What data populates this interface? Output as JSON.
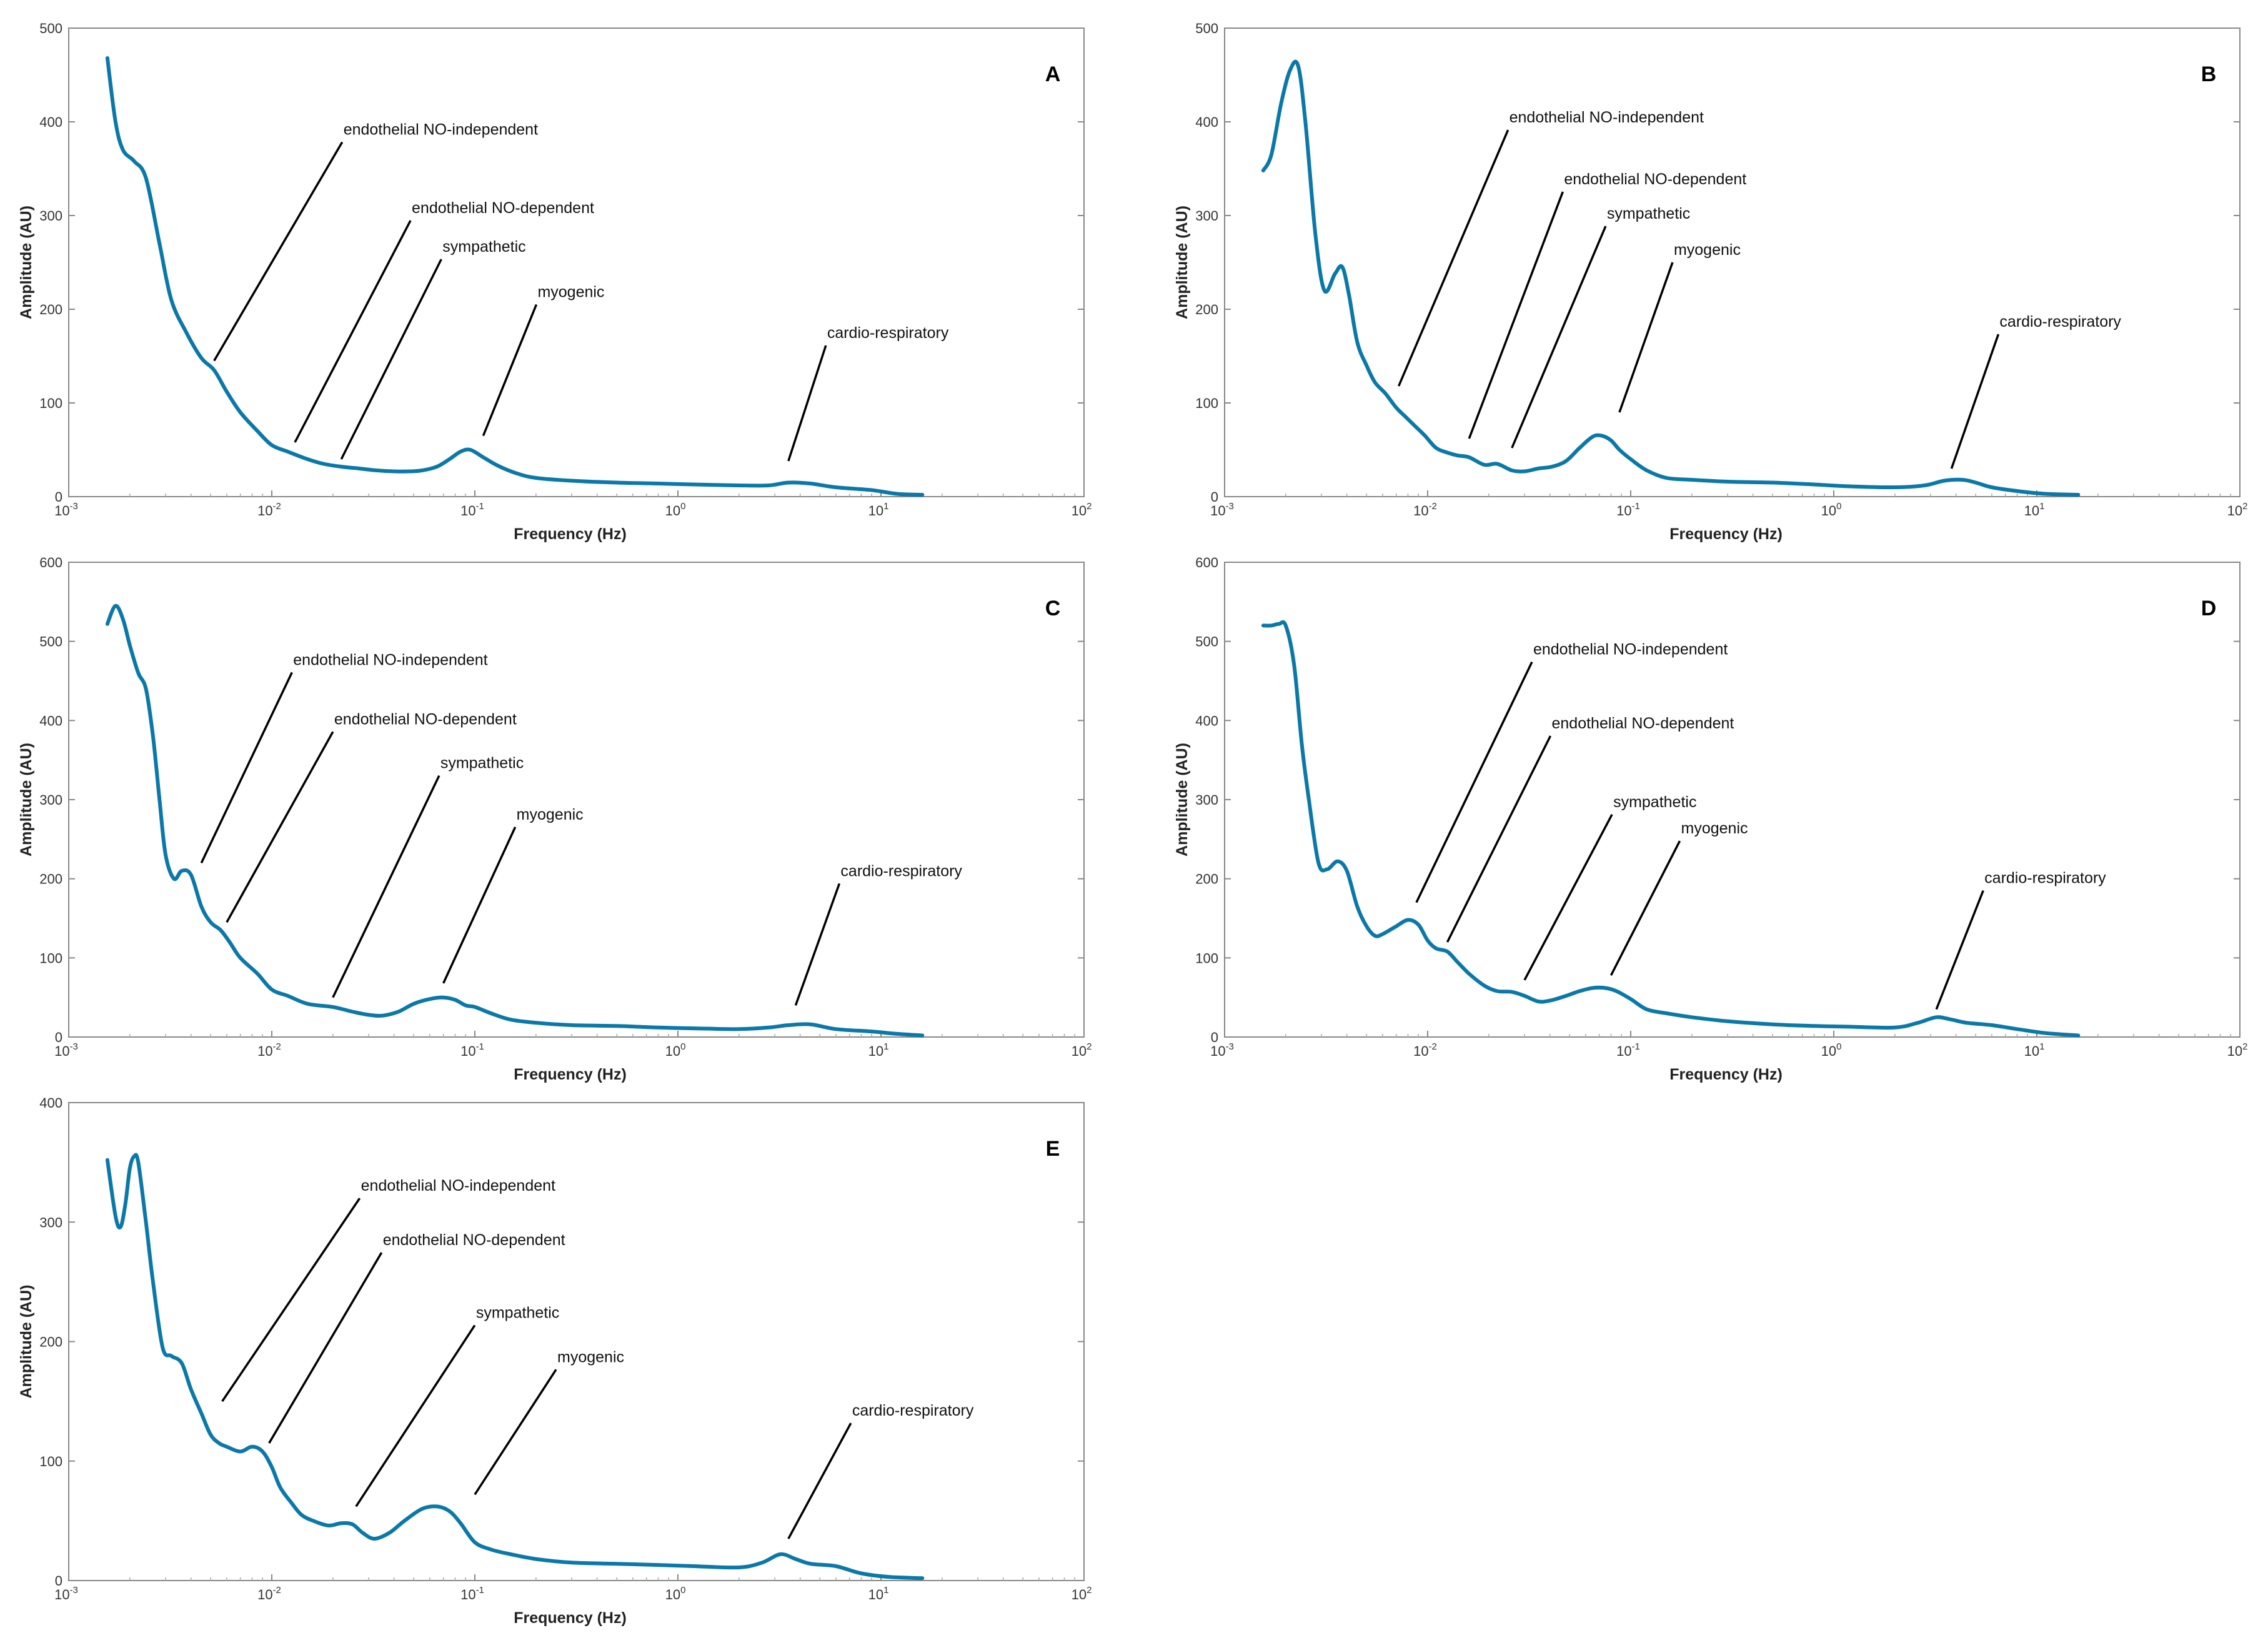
{
  "chart_data": [
    {
      "type": "line",
      "panel": "A",
      "xlabel": "Frequency (Hz)",
      "ylabel": "Amplitude (AU)",
      "xscale": "log",
      "xlim": [
        0.001,
        100
      ],
      "ylim": [
        0,
        500
      ],
      "x_ticks": [
        0.001,
        0.01,
        0.1,
        1,
        10,
        100
      ],
      "x_tick_labels": [
        {
          "base": "10",
          "exp": "-3"
        },
        {
          "base": "10",
          "exp": "-2"
        },
        {
          "base": "10",
          "exp": "-1"
        },
        {
          "base": "10",
          "exp": "0"
        },
        {
          "base": "10",
          "exp": "1"
        },
        {
          "base": "10",
          "exp": "2"
        }
      ],
      "y_ticks": [
        0,
        100,
        200,
        300,
        400,
        500
      ],
      "y_tick_labels": [
        "0",
        "100",
        "200",
        "300",
        "400",
        "500"
      ],
      "series": [
        {
          "name": "Amplitude",
          "x": [
            0.00155,
            0.0017,
            0.00185,
            0.0021,
            0.0024,
            0.0028,
            0.0032,
            0.0038,
            0.0045,
            0.0052,
            0.006,
            0.007,
            0.0085,
            0.01,
            0.012,
            0.015,
            0.018,
            0.022,
            0.027,
            0.033,
            0.04,
            0.048,
            0.055,
            0.065,
            0.075,
            0.085,
            0.095,
            0.11,
            0.13,
            0.16,
            0.2,
            0.3,
            0.5,
            0.8,
            1.2,
            2,
            2.8,
            3.5,
            4.5,
            6,
            9,
            12,
            16
          ],
          "y": [
            468,
            400,
            370,
            358,
            340,
            270,
            210,
            175,
            148,
            135,
            112,
            90,
            70,
            55,
            48,
            40,
            35,
            32,
            30,
            28,
            27,
            27,
            28,
            32,
            40,
            48,
            50,
            42,
            33,
            25,
            20,
            17,
            15,
            14,
            13,
            12,
            12,
            15,
            14,
            10,
            7,
            3,
            2
          ]
        }
      ],
      "annotations": [
        {
          "text": "endothelial NO-independent",
          "x": 0.0052,
          "y": 145
        },
        {
          "text": "endothelial NO-dependent",
          "x": 0.013,
          "y": 58
        },
        {
          "text": "sympathetic",
          "x": 0.022,
          "y": 40
        },
        {
          "text": "myogenic",
          "x": 0.11,
          "y": 65
        },
        {
          "text": "cardio-respiratory",
          "x": 3.5,
          "y": 38
        }
      ]
    },
    {
      "type": "line",
      "panel": "B",
      "xlabel": "Frequency (Hz)",
      "ylabel": "Amplitude (AU)",
      "xscale": "log",
      "xlim": [
        0.001,
        100
      ],
      "ylim": [
        0,
        500
      ],
      "x_ticks": [
        0.001,
        0.01,
        0.1,
        1,
        10,
        100
      ],
      "x_tick_labels": [
        {
          "base": "10",
          "exp": "-3"
        },
        {
          "base": "10",
          "exp": "-2"
        },
        {
          "base": "10",
          "exp": "-1"
        },
        {
          "base": "10",
          "exp": "0"
        },
        {
          "base": "10",
          "exp": "1"
        },
        {
          "base": "10",
          "exp": "2"
        }
      ],
      "y_ticks": [
        0,
        100,
        200,
        300,
        400,
        500
      ],
      "y_tick_labels": [
        "0",
        "100",
        "200",
        "300",
        "400",
        "500"
      ],
      "series": [
        {
          "name": "Amplitude",
          "x": [
            0.00155,
            0.0017,
            0.0019,
            0.0021,
            0.0023,
            0.0025,
            0.0028,
            0.0031,
            0.0035,
            0.0038,
            0.0041,
            0.0045,
            0.005,
            0.0055,
            0.0062,
            0.007,
            0.0078,
            0.0087,
            0.0097,
            0.011,
            0.0125,
            0.014,
            0.016,
            0.019,
            0.022,
            0.026,
            0.03,
            0.035,
            0.041,
            0.048,
            0.056,
            0.065,
            0.072,
            0.08,
            0.088,
            0.1,
            0.12,
            0.15,
            0.2,
            0.3,
            0.5,
            0.8,
            1.2,
            2,
            2.8,
            3.5,
            4.3,
            5,
            6,
            8,
            11,
            16
          ],
          "y": [
            348,
            365,
            420,
            455,
            460,
            400,
            280,
            220,
            238,
            245,
            215,
            165,
            140,
            122,
            110,
            95,
            85,
            75,
            65,
            52,
            47,
            44,
            42,
            34,
            35,
            28,
            27,
            30,
            32,
            38,
            52,
            64,
            65,
            60,
            50,
            40,
            28,
            20,
            18,
            16,
            15,
            13,
            11,
            10,
            12,
            17,
            18,
            15,
            10,
            6,
            3,
            2
          ]
        }
      ],
      "annotations": [
        {
          "text": "endothelial NO-independent",
          "x": 0.0072,
          "y": 118
        },
        {
          "text": "endothelial NO-dependent",
          "x": 0.016,
          "y": 62
        },
        {
          "text": "sympathetic",
          "x": 0.026,
          "y": 52
        },
        {
          "text": "myogenic",
          "x": 0.088,
          "y": 90
        },
        {
          "text": "cardio-respiratory",
          "x": 3.8,
          "y": 30
        }
      ]
    },
    {
      "type": "line",
      "panel": "C",
      "xlabel": "Frequency (Hz)",
      "ylabel": "Amplitude (AU)",
      "xscale": "log",
      "xlim": [
        0.001,
        100
      ],
      "ylim": [
        0,
        600
      ],
      "x_ticks": [
        0.001,
        0.01,
        0.1,
        1,
        10,
        100
      ],
      "x_tick_labels": [
        {
          "base": "10",
          "exp": "-3"
        },
        {
          "base": "10",
          "exp": "-2"
        },
        {
          "base": "10",
          "exp": "-1"
        },
        {
          "base": "10",
          "exp": "0"
        },
        {
          "base": "10",
          "exp": "1"
        },
        {
          "base": "10",
          "exp": "2"
        }
      ],
      "y_ticks": [
        0,
        100,
        200,
        300,
        400,
        500,
        600
      ],
      "y_tick_labels": [
        "0",
        "100",
        "200",
        "300",
        "400",
        "500",
        "600"
      ],
      "series": [
        {
          "name": "Amplitude",
          "x": [
            0.00155,
            0.0017,
            0.00185,
            0.002,
            0.0022,
            0.0024,
            0.0026,
            0.0028,
            0.003,
            0.0033,
            0.0036,
            0.004,
            0.0045,
            0.005,
            0.0056,
            0.0062,
            0.007,
            0.0085,
            0.01,
            0.012,
            0.015,
            0.02,
            0.025,
            0.03,
            0.035,
            0.042,
            0.05,
            0.06,
            0.07,
            0.08,
            0.09,
            0.1,
            0.12,
            0.15,
            0.2,
            0.3,
            0.5,
            0.8,
            1.2,
            2,
            2.8,
            3.5,
            4.5,
            6,
            9,
            12,
            16
          ],
          "y": [
            522,
            545,
            528,
            495,
            460,
            440,
            380,
            300,
            230,
            200,
            210,
            205,
            165,
            145,
            135,
            120,
            100,
            80,
            60,
            52,
            42,
            38,
            32,
            28,
            27,
            32,
            42,
            48,
            50,
            47,
            40,
            38,
            30,
            22,
            18,
            15,
            14,
            12,
            11,
            10,
            12,
            15,
            16,
            10,
            7,
            4,
            2
          ]
        }
      ],
      "annotations": [
        {
          "text": "endothelial NO-independent",
          "x": 0.0045,
          "y": 220
        },
        {
          "text": "endothelial NO-dependent",
          "x": 0.006,
          "y": 145
        },
        {
          "text": "sympathetic",
          "x": 0.02,
          "y": 50
        },
        {
          "text": "myogenic",
          "x": 0.07,
          "y": 68
        },
        {
          "text": "cardio-respiratory",
          "x": 3.8,
          "y": 40
        }
      ]
    },
    {
      "type": "line",
      "panel": "D",
      "xlabel": "Frequency (Hz)",
      "ylabel": "Amplitude (AU)",
      "xscale": "log",
      "xlim": [
        0.001,
        100
      ],
      "ylim": [
        0,
        600
      ],
      "x_ticks": [
        0.001,
        0.01,
        0.1,
        1,
        10,
        100
      ],
      "x_tick_labels": [
        {
          "base": "10",
          "exp": "-3"
        },
        {
          "base": "10",
          "exp": "-2"
        },
        {
          "base": "10",
          "exp": "-1"
        },
        {
          "base": "10",
          "exp": "0"
        },
        {
          "base": "10",
          "exp": "1"
        },
        {
          "base": "10",
          "exp": "2"
        }
      ],
      "y_ticks": [
        0,
        100,
        200,
        300,
        400,
        500,
        600
      ],
      "y_tick_labels": [
        "0",
        "100",
        "200",
        "300",
        "400",
        "500",
        "600"
      ],
      "series": [
        {
          "name": "Amplitude",
          "x": [
            0.00155,
            0.0017,
            0.00185,
            0.002,
            0.0022,
            0.0024,
            0.0026,
            0.0029,
            0.0032,
            0.0036,
            0.004,
            0.0045,
            0.005,
            0.0055,
            0.006,
            0.007,
            0.008,
            0.009,
            0.01,
            0.011,
            0.0125,
            0.014,
            0.016,
            0.019,
            0.022,
            0.026,
            0.03,
            0.035,
            0.04,
            0.048,
            0.056,
            0.065,
            0.075,
            0.085,
            0.1,
            0.12,
            0.15,
            0.2,
            0.3,
            0.5,
            0.8,
            1.2,
            2,
            2.6,
            3.2,
            3.8,
            4.5,
            6,
            8,
            11,
            16
          ],
          "y": [
            520,
            520,
            522,
            520,
            470,
            370,
            300,
            220,
            212,
            222,
            210,
            165,
            140,
            128,
            130,
            140,
            148,
            142,
            122,
            112,
            108,
            95,
            80,
            65,
            58,
            57,
            52,
            45,
            46,
            52,
            58,
            62,
            62,
            58,
            48,
            35,
            30,
            25,
            20,
            16,
            14,
            13,
            12,
            18,
            25,
            22,
            18,
            15,
            10,
            5,
            2
          ]
        }
      ],
      "annotations": [
        {
          "text": "endothelial NO-independent",
          "x": 0.0088,
          "y": 170
        },
        {
          "text": "endothelial NO-dependent",
          "x": 0.0125,
          "y": 120
        },
        {
          "text": "sympathetic",
          "x": 0.03,
          "y": 72
        },
        {
          "text": "myogenic",
          "x": 0.08,
          "y": 78
        },
        {
          "text": "cardio-respiratory",
          "x": 3.2,
          "y": 35
        }
      ]
    },
    {
      "type": "line",
      "panel": "E",
      "xlabel": "Frequency (Hz)",
      "ylabel": "Amplitude (AU)",
      "xscale": "log",
      "xlim": [
        0.001,
        100
      ],
      "ylim": [
        0,
        400
      ],
      "x_ticks": [
        0.001,
        0.01,
        0.1,
        1,
        10,
        100
      ],
      "x_tick_labels": [
        {
          "base": "10",
          "exp": "-3"
        },
        {
          "base": "10",
          "exp": "-2"
        },
        {
          "base": "10",
          "exp": "-1"
        },
        {
          "base": "10",
          "exp": "0"
        },
        {
          "base": "10",
          "exp": "1"
        },
        {
          "base": "10",
          "exp": "2"
        }
      ],
      "y_ticks": [
        0,
        100,
        200,
        300,
        400
      ],
      "y_tick_labels": [
        "0",
        "100",
        "200",
        "300",
        "400"
      ],
      "series": [
        {
          "name": "Amplitude",
          "x": [
            0.00155,
            0.0017,
            0.0018,
            0.0019,
            0.002,
            0.0021,
            0.0022,
            0.0024,
            0.0026,
            0.0029,
            0.0032,
            0.0036,
            0.004,
            0.0045,
            0.005,
            0.0055,
            0.006,
            0.007,
            0.008,
            0.009,
            0.01,
            0.011,
            0.0125,
            0.014,
            0.016,
            0.019,
            0.022,
            0.025,
            0.028,
            0.032,
            0.038,
            0.045,
            0.055,
            0.065,
            0.075,
            0.085,
            0.1,
            0.12,
            0.15,
            0.2,
            0.3,
            0.5,
            0.8,
            1.2,
            2,
            2.6,
            3.2,
            3.8,
            4.5,
            6,
            8,
            11,
            16
          ],
          "y": [
            352,
            305,
            296,
            315,
            345,
            355,
            350,
            300,
            250,
            195,
            188,
            182,
            160,
            140,
            122,
            115,
            112,
            108,
            112,
            108,
            95,
            78,
            65,
            55,
            50,
            46,
            48,
            47,
            40,
            35,
            40,
            50,
            60,
            62,
            58,
            48,
            32,
            26,
            22,
            18,
            15,
            14,
            13,
            12,
            11,
            15,
            22,
            18,
            14,
            12,
            6,
            3,
            2
          ]
        }
      ],
      "annotations": [
        {
          "text": "endothelial NO-independent",
          "x": 0.0057,
          "y": 150
        },
        {
          "text": "endothelial NO-dependent",
          "x": 0.0097,
          "y": 115
        },
        {
          "text": "sympathetic",
          "x": 0.026,
          "y": 62
        },
        {
          "text": "myogenic",
          "x": 0.1,
          "y": 72
        },
        {
          "text": "cardio-respiratory",
          "x": 3.5,
          "y": 35
        }
      ]
    }
  ]
}
